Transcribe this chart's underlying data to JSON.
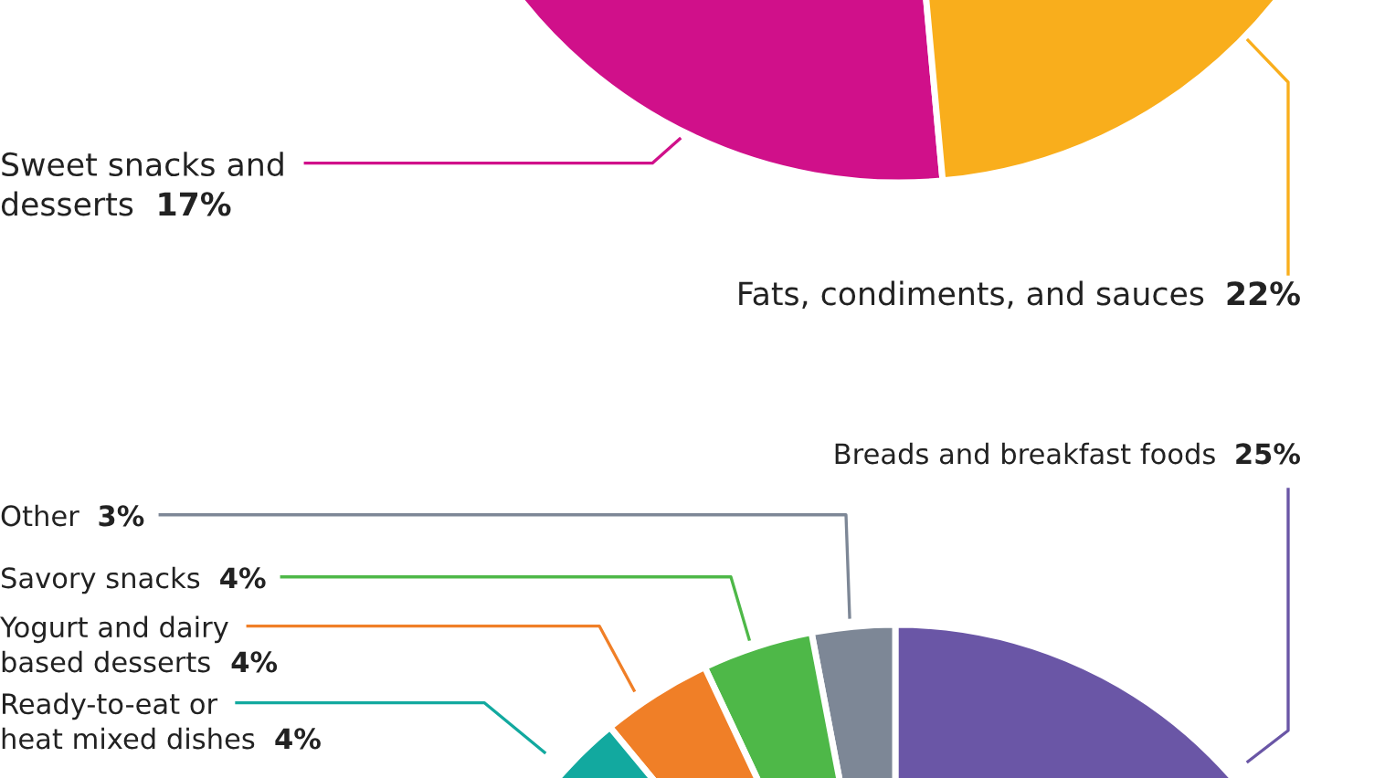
{
  "chart_data": [
    {
      "type": "pie",
      "categories": [
        "Sweet snacks and desserts",
        "Fats, condiments, and sauces"
      ],
      "values": [
        17,
        22
      ],
      "colors": [
        "#d0108a",
        "#f9ae1c"
      ],
      "value_labels": [
        "17%",
        "22%"
      ]
    },
    {
      "type": "pie",
      "categories": [
        "Breads and breakfast foods",
        "Other",
        "Savory snacks",
        "Yogurt and dairy based desserts",
        "Ready-to-eat or heat mixed dishes"
      ],
      "values": [
        25,
        3,
        4,
        4,
        4
      ],
      "colors": [
        "#6a56a6",
        "#7d8796",
        "#4eb848",
        "#f07f27",
        "#12a99f"
      ],
      "value_labels": [
        "25%",
        "3%",
        "4%",
        "4%",
        "4%"
      ]
    }
  ]
}
